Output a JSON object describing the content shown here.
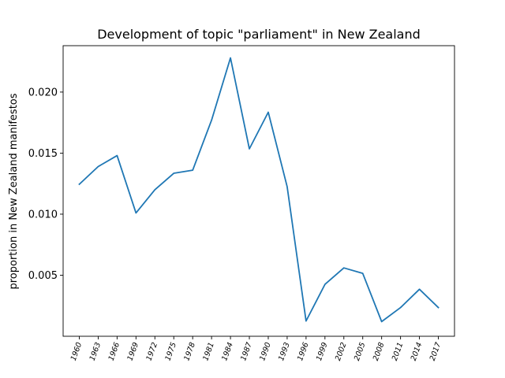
{
  "chart_data": {
    "type": "line",
    "title": "Development of topic \"parliament\" in New Zealand",
    "xlabel": "",
    "ylabel": "proportion in New Zealand manifestos",
    "categories": [
      "1960",
      "1963",
      "1966",
      "1969",
      "1972",
      "1975",
      "1978",
      "1981",
      "1984",
      "1987",
      "1990",
      "1993",
      "1996",
      "1999",
      "2002",
      "2005",
      "2008",
      "2011",
      "2014",
      "2017"
    ],
    "series": [
      {
        "name": "parliament",
        "color": "#1f77b4",
        "values": [
          0.01245,
          0.0139,
          0.0148,
          0.0101,
          0.012,
          0.01335,
          0.0136,
          0.0177,
          0.0228,
          0.01535,
          0.01835,
          0.01225,
          0.00125,
          0.00425,
          0.0056,
          0.00515,
          0.0012,
          0.00235,
          0.00385,
          0.00235
        ]
      }
    ],
    "yticks": [
      0.005,
      0.01,
      0.015,
      0.02
    ],
    "ytick_labels": [
      "0.005",
      "0.010",
      "0.015",
      "0.020"
    ],
    "ylim": [
      0.0,
      0.0238
    ],
    "grid": false,
    "legend": "none"
  }
}
